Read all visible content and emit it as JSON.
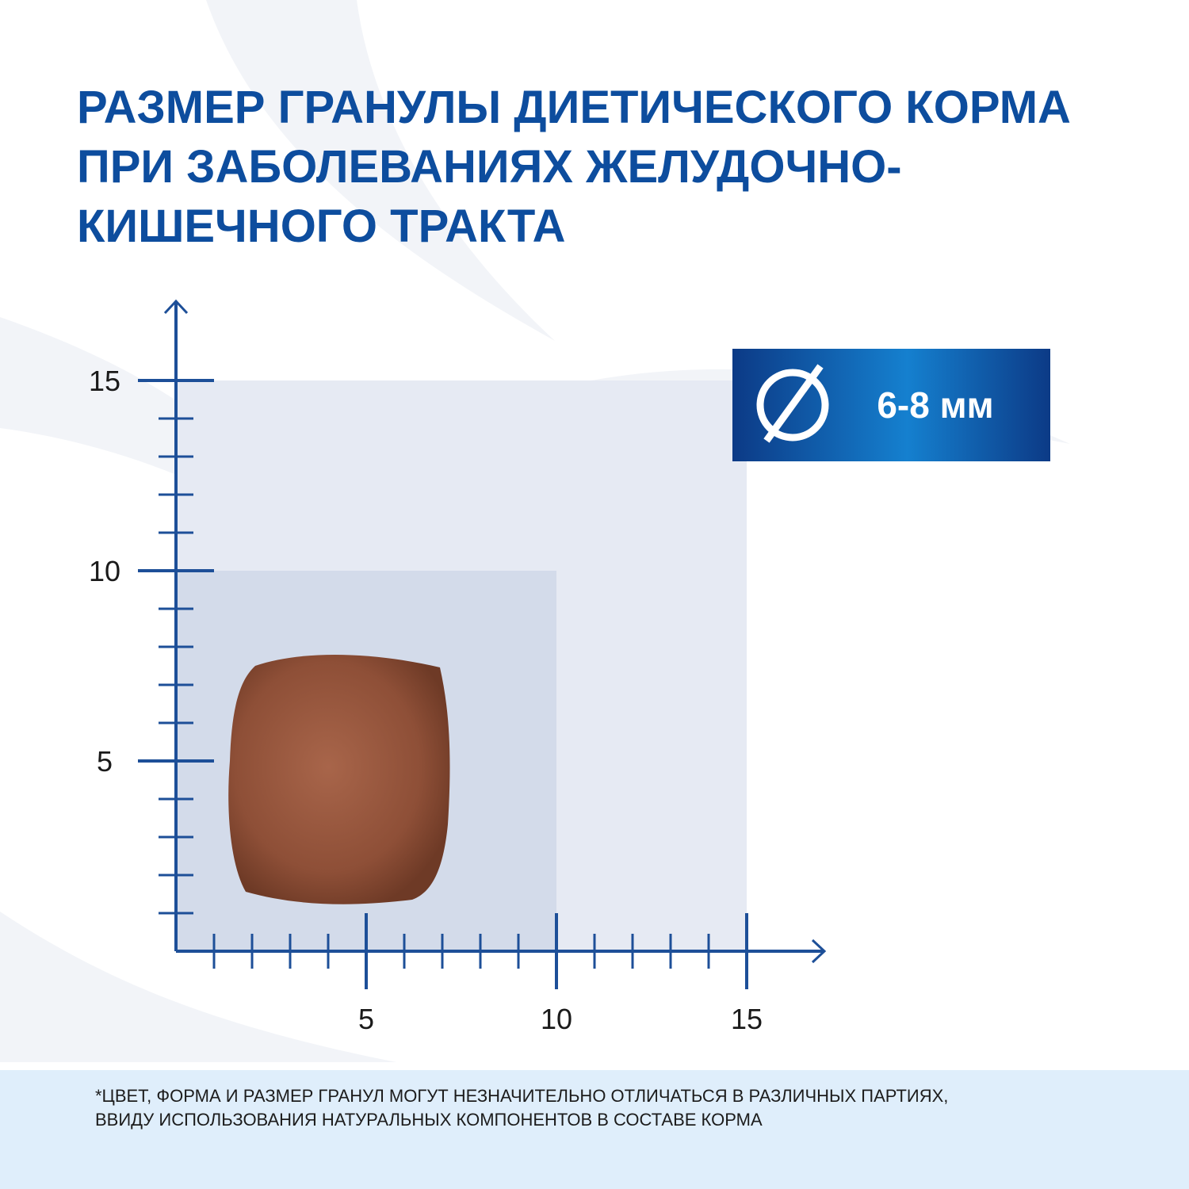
{
  "title": {
    "lines": [
      "РАЗМЕР ГРАНУЛЫ ДИЕТИЧЕСКОГО КОРМА",
      "ПРИ ЗАБОЛЕВАНИЯХ ЖЕЛУДОЧНО-",
      "КИШЕЧНОГО ТРАКТА"
    ]
  },
  "badge": {
    "text": "6-8 мм"
  },
  "axes": {
    "x_ticks": [
      5,
      10,
      15
    ],
    "y_ticks": [
      5,
      10,
      15
    ]
  },
  "footnote": {
    "lines": [
      "*ЦВЕТ, ФОРМА И РАЗМЕР ГРАНУЛ МОГУТ НЕЗНАЧИТЕЛЬНО ОТЛИЧАТЬСЯ  В РАЗЛИЧНЫХ ПАРТИЯХ,",
      "ВВИДУ ИСПОЛЬЗОВАНИЯ НАТУРАЛЬНЫХ КОМПОНЕНТОВ В СОСТАВЕ  КОРМА"
    ]
  }
}
